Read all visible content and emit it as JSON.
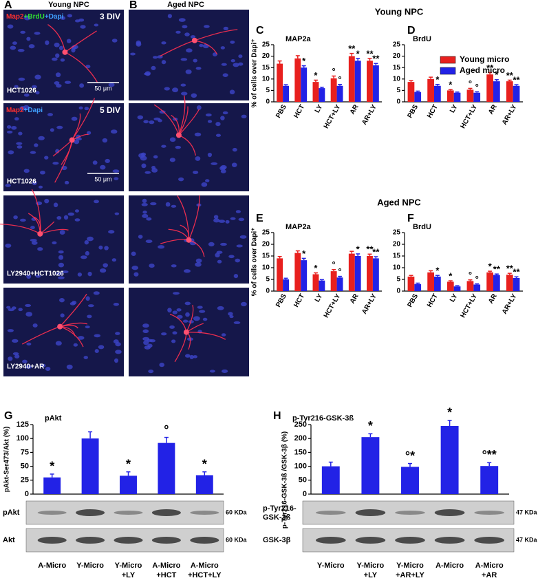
{
  "figure": {
    "section_titles": [
      "Young NPC",
      "Aged NPC"
    ],
    "panels": [
      {
        "letter": "A",
        "title": "Young NPC"
      },
      {
        "letter": "B",
        "title": "Aged NPC"
      }
    ],
    "images": [
      {
        "stain": [
          {
            "text": "Map2",
            "color": "#ff3030"
          },
          {
            "text": "+BrdU",
            "color": "#30e030"
          },
          {
            "text": "+Dapi",
            "color": "#40a0ff"
          }
        ],
        "days": "3 DIV",
        "treatment": "HCT1026",
        "scale": "50 μm"
      },
      {
        "stain": [
          {
            "text": "Map2",
            "color": "#ff3030"
          },
          {
            "text": "+Dapi",
            "color": "#40a0ff"
          }
        ],
        "days": "5 DIV",
        "treatment": "HCT1026",
        "scale": "50 μm"
      },
      {
        "treatment": "LY2940+HCT1026"
      },
      {
        "treatment": "LY2940+AR"
      }
    ],
    "blots": [
      {
        "rows": [
          {
            "label": [
              "pAkt"
            ],
            "kda": "60 KDa"
          },
          {
            "label": [
              "Akt"
            ],
            "kda": "60 KDa"
          }
        ]
      },
      {
        "rows": [
          {
            "label": [
              "p-Tyr216-",
              "GSK-3ß"
            ],
            "kda": "47 KDa"
          },
          {
            "label": [
              "GSK-3β"
            ],
            "kda": "47 KDa"
          }
        ]
      }
    ]
  },
  "chart_data": [
    {
      "type": "bar",
      "letter": "C",
      "title": "MAP2a",
      "ylabel": "% of cells over Dapi⁺",
      "categories": [
        "PBS",
        "HCT",
        "LY",
        "HCT+LY",
        "AR",
        "AR+LY"
      ],
      "series": [
        {
          "color": "#e8201e",
          "values": [
            16.7,
            19,
            8.7,
            10.3,
            20,
            18
          ],
          "errors": [
            1.2,
            1.2,
            0.8,
            1,
            1.2,
            1
          ],
          "markers": [
            null,
            null,
            "*",
            "°",
            "**",
            "**"
          ]
        },
        {
          "color": "#2222e6",
          "values": [
            7,
            15,
            6,
            7,
            18,
            16
          ],
          "errors": [
            0.5,
            0.8,
            0.4,
            0.6,
            1,
            0.8
          ],
          "markers": [
            null,
            "*",
            null,
            "°",
            "*",
            "**"
          ]
        }
      ],
      "ylim": [
        0,
        25
      ],
      "yticks": [
        0,
        5,
        10,
        15,
        20,
        25
      ]
    },
    {
      "type": "bar",
      "letter": "D",
      "title": "BrdU",
      "categories": [
        "PBS",
        "HCT",
        "LY",
        "HCT+LY",
        "AR",
        "AR+LY"
      ],
      "series": [
        {
          "name": "Young micro",
          "color": "#e8201e",
          "values": [
            8.7,
            10,
            5,
            5.3,
            12,
            9
          ],
          "errors": [
            0.6,
            0.8,
            0.4,
            0.6,
            0.8,
            0.5
          ],
          "markers": [
            null,
            null,
            "*",
            "°",
            "**",
            "**"
          ]
        },
        {
          "name": "Aged micro",
          "color": "#2222e6",
          "values": [
            4.3,
            7,
            4,
            4,
            9,
            7
          ],
          "errors": [
            0.4,
            0.6,
            0.3,
            0.4,
            0.7,
            0.5
          ],
          "markers": [
            null,
            "*",
            null,
            "°",
            "*",
            "**"
          ]
        }
      ],
      "ylim": [
        0,
        25
      ],
      "yticks": [
        0,
        5,
        10,
        15,
        20,
        25
      ]
    },
    {
      "type": "bar",
      "letter": "E",
      "title": "MAP2a",
      "ylabel": "% of cells over Dapi⁺",
      "categories": [
        "PBS",
        "HCT",
        "LY",
        "HCT+LY",
        "AR",
        "AR+LY"
      ],
      "series": [
        {
          "color": "#e8201e",
          "values": [
            14,
            16.3,
            7.2,
            8.5,
            16,
            15
          ],
          "errors": [
            0.8,
            0.9,
            0.6,
            0.7,
            1,
            0.8
          ],
          "markers": [
            null,
            null,
            "*",
            "°",
            null,
            "**"
          ]
        },
        {
          "color": "#2222e6",
          "values": [
            5,
            13.2,
            4.5,
            5.8,
            15,
            14
          ],
          "errors": [
            0.5,
            0.8,
            0.4,
            0.5,
            0.9,
            0.7
          ],
          "markers": [
            null,
            "*",
            null,
            "°",
            "*",
            "**"
          ]
        }
      ],
      "ylim": [
        0,
        25
      ],
      "yticks": [
        0,
        5,
        10,
        15,
        20,
        25
      ]
    },
    {
      "type": "bar",
      "letter": "F",
      "title": "BrdU",
      "categories": [
        "PBS",
        "HCT",
        "LY",
        "HCT+LY",
        "AR",
        "AR+LY"
      ],
      "series": [
        {
          "color": "#e8201e",
          "values": [
            6.2,
            8,
            4,
            4.3,
            8,
            7
          ],
          "errors": [
            0.5,
            0.7,
            0.4,
            0.5,
            0.5,
            0.6
          ],
          "markers": [
            null,
            null,
            "*",
            "°",
            "*",
            "**"
          ]
        },
        {
          "color": "#2222e6",
          "values": [
            3,
            6.2,
            2,
            2.8,
            6.9,
            5.6
          ],
          "errors": [
            0.4,
            0.5,
            0.3,
            0.3,
            0.4,
            0.5
          ],
          "markers": [
            null,
            "*",
            null,
            "°",
            "**",
            "**"
          ]
        }
      ],
      "ylim": [
        0,
        25
      ],
      "yticks": [
        0,
        5,
        10,
        15,
        20,
        25
      ]
    },
    {
      "type": "bar",
      "letter": "G",
      "title": "pAkt",
      "ylabel": "pAkt-Ser473/Akt (%)",
      "categories": [
        [
          "A-Micro"
        ],
        [
          "Y-Micro"
        ],
        [
          "Y-Micro",
          "+LY"
        ],
        [
          "A-Micro",
          "+HCT"
        ],
        [
          "A-Micro",
          "+HCT+LY"
        ]
      ],
      "color": "#2222e6",
      "values": [
        30,
        100,
        33,
        92,
        34
      ],
      "errors": [
        6,
        12,
        7,
        10,
        6
      ],
      "markers": [
        "*",
        null,
        "*",
        "°",
        "*"
      ],
      "ylim": [
        0,
        125
      ],
      "yticks": [
        0,
        25,
        50,
        75,
        100,
        125
      ]
    },
    {
      "type": "bar",
      "letter": "H",
      "title": "p-Tyr216-GSK-3ß",
      "ylabel": "p-Tyr216-GSK-3ß /GSK-3β (%)",
      "categories": [
        [
          "Y-Micro"
        ],
        [
          "Y-Micro",
          "+LY"
        ],
        [
          "Y-Micro",
          "+AR+LY"
        ],
        [
          "A-Micro"
        ],
        [
          "A-Micro",
          "+AR"
        ]
      ],
      "color": "#2222e6",
      "values": [
        100,
        205,
        98,
        245,
        101
      ],
      "errors": [
        15,
        12,
        12,
        20,
        12
      ],
      "markers": [
        null,
        "*",
        "°*",
        "*",
        "°**"
      ],
      "ylim": [
        0,
        250
      ],
      "yticks": [
        0,
        50,
        100,
        150,
        200,
        250
      ]
    }
  ]
}
